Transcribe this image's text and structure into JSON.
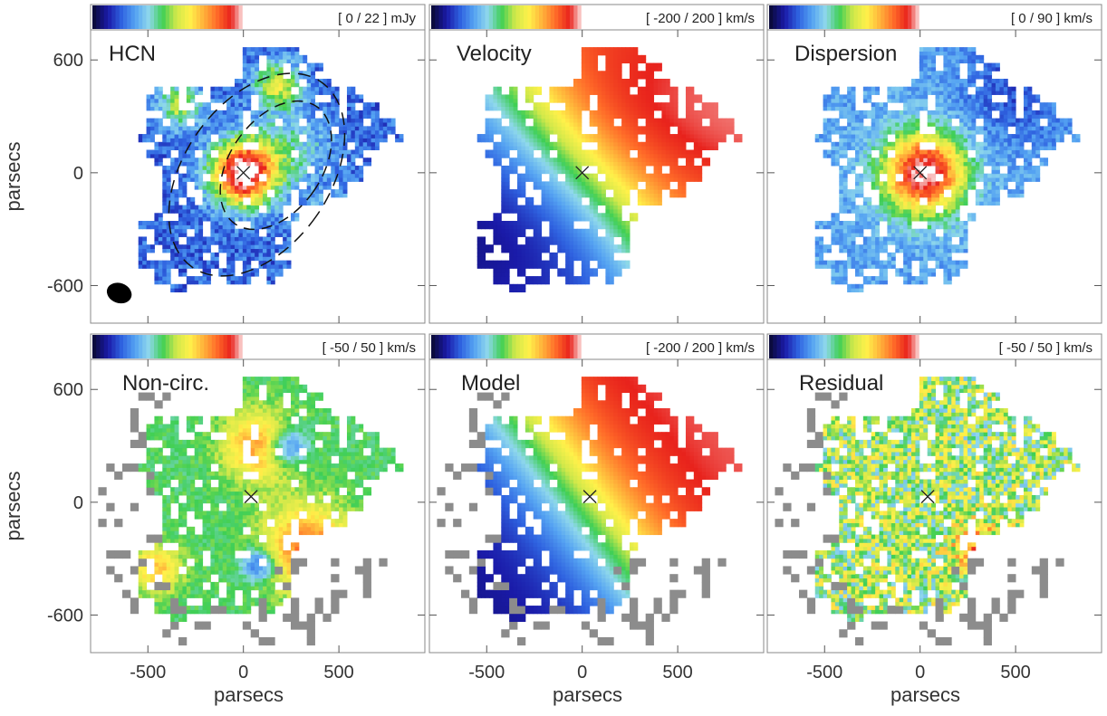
{
  "chart_data": [
    {
      "type": "heatmap",
      "label": "HCN",
      "colorbar": "[ 0 / 22 ] mJy",
      "range": [
        0,
        22
      ],
      "unit": "mJy",
      "field": "hcn",
      "center_marker": "x",
      "beam": true,
      "ellipses": true
    },
    {
      "type": "heatmap",
      "label": "Velocity",
      "colorbar": "[ -200 / 200 ] km/s",
      "range": [
        -200,
        200
      ],
      "unit": "km/s",
      "field": "velocity",
      "center_marker": "x"
    },
    {
      "type": "heatmap",
      "label": "Dispersion",
      "colorbar": "[ 0 / 90 ] km/s",
      "range": [
        0,
        90
      ],
      "unit": "km/s",
      "field": "dispersion",
      "center_marker": "x"
    },
    {
      "type": "heatmap",
      "label": "Non-circ.",
      "colorbar": "[ -50 / 50 ] km/s",
      "range": [
        -50,
        50
      ],
      "unit": "km/s",
      "field": "noncirc",
      "center_marker": "x",
      "masked_gray": true
    },
    {
      "type": "heatmap",
      "label": "Model",
      "colorbar": "[ -200 / 200 ] km/s",
      "range": [
        -200,
        200
      ],
      "unit": "km/s",
      "field": "model",
      "center_marker": "x",
      "masked_gray": true
    },
    {
      "type": "heatmap",
      "label": "Residual",
      "colorbar": "[ -50 / 50 ] km/s",
      "range": [
        -50,
        50
      ],
      "unit": "km/s",
      "field": "residual",
      "center_marker": "x",
      "masked_gray": true
    }
  ],
  "axes": {
    "xlabel": "parsecs",
    "ylabel": "parsecs",
    "x_ticks": [
      "-500",
      "0",
      "500"
    ],
    "y_ticks": [
      "600",
      "0",
      "-600"
    ],
    "x_tick_values": [
      -500,
      0,
      500
    ],
    "y_tick_values": [
      600,
      0,
      -600
    ],
    "xlim": [
      -800,
      950
    ],
    "ylim": [
      -800,
      760
    ]
  },
  "colormap": [
    "#0b0b3e",
    "#1a1aa8",
    "#2f63e0",
    "#55a3f2",
    "#8fd8ec",
    "#3fcf55",
    "#cfe84a",
    "#fff14a",
    "#ffb23a",
    "#ff6a28",
    "#e8221c",
    "#ffffff"
  ],
  "colors": {
    "masked": "#8c8c8c",
    "frame": "#888888"
  }
}
